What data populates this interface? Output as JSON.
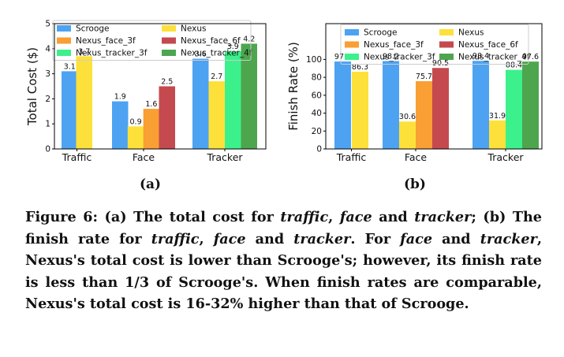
{
  "chart_data": [
    {
      "type": "bar",
      "categories": [
        "Traffic",
        "Face",
        "Tracker"
      ],
      "ylabel": "Total Cost ($)",
      "ylim": [
        0,
        5
      ],
      "yticks": [
        "0",
        "1",
        "2",
        "3",
        "4",
        "5"
      ],
      "legend_position": "top",
      "series": [
        {
          "name": "Scrooge",
          "color": "#4da3f2",
          "values": [
            3.1,
            1.9,
            3.6
          ]
        },
        {
          "name": "Nexus",
          "color": "#fde13a",
          "values": [
            3.7,
            0.9,
            2.7
          ]
        },
        {
          "name": "Nexus_face_3f",
          "color": "#f99f33",
          "values": [
            null,
            1.6,
            null
          ]
        },
        {
          "name": "Nexus_face_6f",
          "color": "#c44a4f",
          "values": [
            null,
            2.5,
            null
          ]
        },
        {
          "name": "Nexus_tracker_3f",
          "color": "#3cf08c",
          "values": [
            null,
            null,
            3.9
          ]
        },
        {
          "name": "Nexus_tracker_4f",
          "color": "#4da64e",
          "values": [
            null,
            null,
            4.2
          ]
        }
      ],
      "data_labels": {
        "Traffic": [
          "3.1",
          "3.7"
        ],
        "Face": [
          "1.9",
          "0.9",
          "1.6",
          "2.5"
        ],
        "Tracker": [
          "3.6",
          "2.7",
          "3.9",
          "4.2"
        ]
      },
      "grid": false
    },
    {
      "type": "bar",
      "categories": [
        "Traffic",
        "Face",
        "Tracker"
      ],
      "ylabel": "Finish Rate (%)",
      "ylim": [
        0,
        140
      ],
      "yticks": [
        "0",
        "20",
        "40",
        "60",
        "80",
        "100"
      ],
      "legend_position": "top",
      "series": [
        {
          "name": "Scrooge",
          "color": "#4da3f2",
          "values": [
            97.7,
            98.2,
            98.4
          ]
        },
        {
          "name": "Nexus",
          "color": "#fde13a",
          "values": [
            86.3,
            30.6,
            31.9
          ]
        },
        {
          "name": "Nexus_face_3f",
          "color": "#f99f33",
          "values": [
            null,
            75.7,
            null
          ]
        },
        {
          "name": "Nexus_face_6f",
          "color": "#c44a4f",
          "values": [
            null,
            90.5,
            null
          ]
        },
        {
          "name": "Nexus_tracker_3f",
          "color": "#3cf08c",
          "values": [
            null,
            null,
            88.4
          ]
        },
        {
          "name": "Nexus_tracker_4f",
          "color": "#4da64e",
          "values": [
            null,
            null,
            97.6
          ]
        }
      ],
      "data_labels": {
        "Traffic": [
          "97.7",
          "86.3"
        ],
        "Face": [
          "98.2",
          "30.6",
          "75.7",
          "90.5"
        ],
        "Tracker": [
          "98.4",
          "31.9",
          "88.4",
          "97.6"
        ]
      },
      "grid": false
    }
  ],
  "subfigure_labels": [
    "(a)",
    "(b)"
  ],
  "caption": {
    "p1": "Figure 6: (a) The total cost for ",
    "e1": "traffic",
    "p2": ", ",
    "e2": "face",
    "p3": " and ",
    "e3": "tracker",
    "p4": "; (b) The finish rate for ",
    "e4": "traffic",
    "p5": ", ",
    "e5": "face",
    "p6": " and ",
    "e6": "tracker",
    "p7": ". For ",
    "e7": "face",
    "p8": " and ",
    "e8": "tracker",
    "p9": ", Nexus's total cost is lower than Scrooge's; however, its finish rate is less than 1/3 of Scrooge's. When finish rates are comparable, Nexus's total cost is 16-32% higher than that of Scrooge."
  }
}
